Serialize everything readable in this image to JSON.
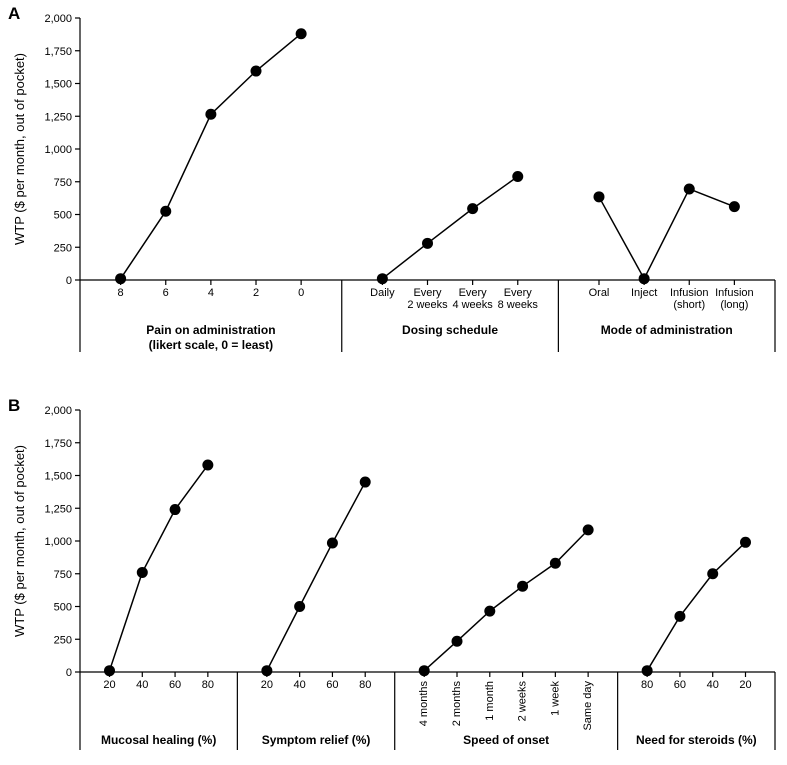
{
  "global": {
    "background_color": "#ffffff",
    "axis_color": "#000000",
    "line_color": "#000000",
    "marker_fill": "#000000",
    "marker_radius": 5.5,
    "line_width": 1.5,
    "axis_width": 1.2,
    "divider_width": 1.2,
    "font_family": "Arial, Helvetica, sans-serif",
    "label_fontsize": 12,
    "tick_fontsize": 11,
    "ylabel_fontsize": 13,
    "grouplabel_fontsize": 12,
    "grouplabel_bold": true,
    "panel_label_fontsize": 17
  },
  "panelA": {
    "label": "A",
    "ylabel": "WTP ($ per month, out of pocket)",
    "ylim": [
      0,
      2000
    ],
    "ytick_step": 250,
    "ytick_labels": [
      "0",
      "250",
      "500",
      "750",
      "1,000",
      "1,250",
      "1,500",
      "1,750",
      "2,000"
    ],
    "groups": [
      {
        "title": "Pain on administration",
        "subtitle": "(likert scale, 0 = least)",
        "categories": [
          "8",
          "6",
          "4",
          "2",
          "0"
        ],
        "values": [
          10,
          525,
          1265,
          1595,
          1880
        ],
        "rotate": false
      },
      {
        "title": "Dosing schedule",
        "subtitle": "",
        "categories": [
          "Daily",
          "Every\n2 weeks",
          "Every\n4 weeks",
          "Every\n8 weeks"
        ],
        "values": [
          10,
          280,
          545,
          790
        ],
        "rotate": false
      },
      {
        "title": "Mode of administration",
        "subtitle": "",
        "categories": [
          "Oral",
          "Inject",
          "Infusion\n(short)",
          "Infusion\n(long)"
        ],
        "values": [
          635,
          10,
          695,
          560
        ],
        "rotate": false
      }
    ]
  },
  "panelB": {
    "label": "B",
    "ylabel": "WTP ($ per month, out of pocket)",
    "ylim": [
      0,
      2000
    ],
    "ytick_step": 250,
    "ytick_labels": [
      "0",
      "250",
      "500",
      "750",
      "1,000",
      "1,250",
      "1,500",
      "1,750",
      "2,000"
    ],
    "groups": [
      {
        "title": "Mucosal healing (%)",
        "subtitle": "",
        "categories": [
          "20",
          "40",
          "60",
          "80"
        ],
        "values": [
          10,
          760,
          1240,
          1580
        ],
        "rotate": false
      },
      {
        "title": "Symptom relief (%)",
        "subtitle": "",
        "categories": [
          "20",
          "40",
          "60",
          "80"
        ],
        "values": [
          10,
          500,
          985,
          1450
        ],
        "rotate": false
      },
      {
        "title": "Speed of onset",
        "subtitle": "",
        "categories": [
          "4 months",
          "2 months",
          "1 month",
          "2 weeks",
          "1 week",
          "Same day"
        ],
        "values": [
          10,
          235,
          465,
          655,
          830,
          1085
        ],
        "rotate": true
      },
      {
        "title": "Need for steroids (%)",
        "subtitle": "",
        "categories": [
          "80",
          "60",
          "40",
          "20"
        ],
        "values": [
          10,
          425,
          750,
          990
        ],
        "rotate": false
      }
    ]
  }
}
